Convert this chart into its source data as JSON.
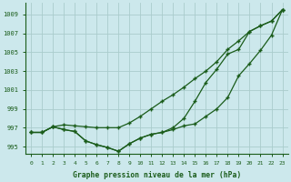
{
  "title": "Graphe pression niveau de la mer (hPa)",
  "bg_color": "#cce8ec",
  "grid_color": "#aacccc",
  "line_color": "#1a5c1a",
  "x_ticks": [
    0,
    1,
    2,
    3,
    4,
    5,
    6,
    7,
    8,
    9,
    10,
    11,
    12,
    13,
    14,
    15,
    16,
    17,
    18,
    19,
    20,
    21,
    22,
    23
  ],
  "ylim": [
    994.2,
    1010.2
  ],
  "yticks": [
    995,
    997,
    999,
    1001,
    1003,
    1005,
    1007,
    1009
  ],
  "line_low": [
    996.5,
    996.5,
    997.1,
    996.8,
    996.6,
    995.6,
    995.2,
    994.9,
    994.5,
    995.3,
    995.9,
    996.3,
    996.5,
    996.8,
    997.2,
    997.4,
    998.2,
    999.0,
    1000.2,
    1002.5,
    1003.8,
    1005.2,
    1006.8,
    1009.5
  ],
  "line_mid": [
    996.5,
    996.5,
    997.1,
    996.8,
    996.6,
    995.6,
    995.2,
    994.9,
    994.5,
    995.3,
    995.9,
    996.3,
    996.5,
    997.0,
    998.0,
    999.8,
    1001.8,
    1003.2,
    1004.8,
    1005.3,
    1007.2,
    1007.8,
    1008.3,
    1009.5
  ],
  "line_high": [
    996.5,
    996.5,
    997.1,
    997.3,
    997.2,
    997.1,
    997.0,
    997.0,
    997.0,
    997.5,
    998.2,
    999.0,
    999.8,
    1000.5,
    1001.3,
    1002.2,
    1003.0,
    1004.0,
    1005.3,
    1006.2,
    1007.2,
    1007.8,
    1008.3,
    1009.5
  ]
}
